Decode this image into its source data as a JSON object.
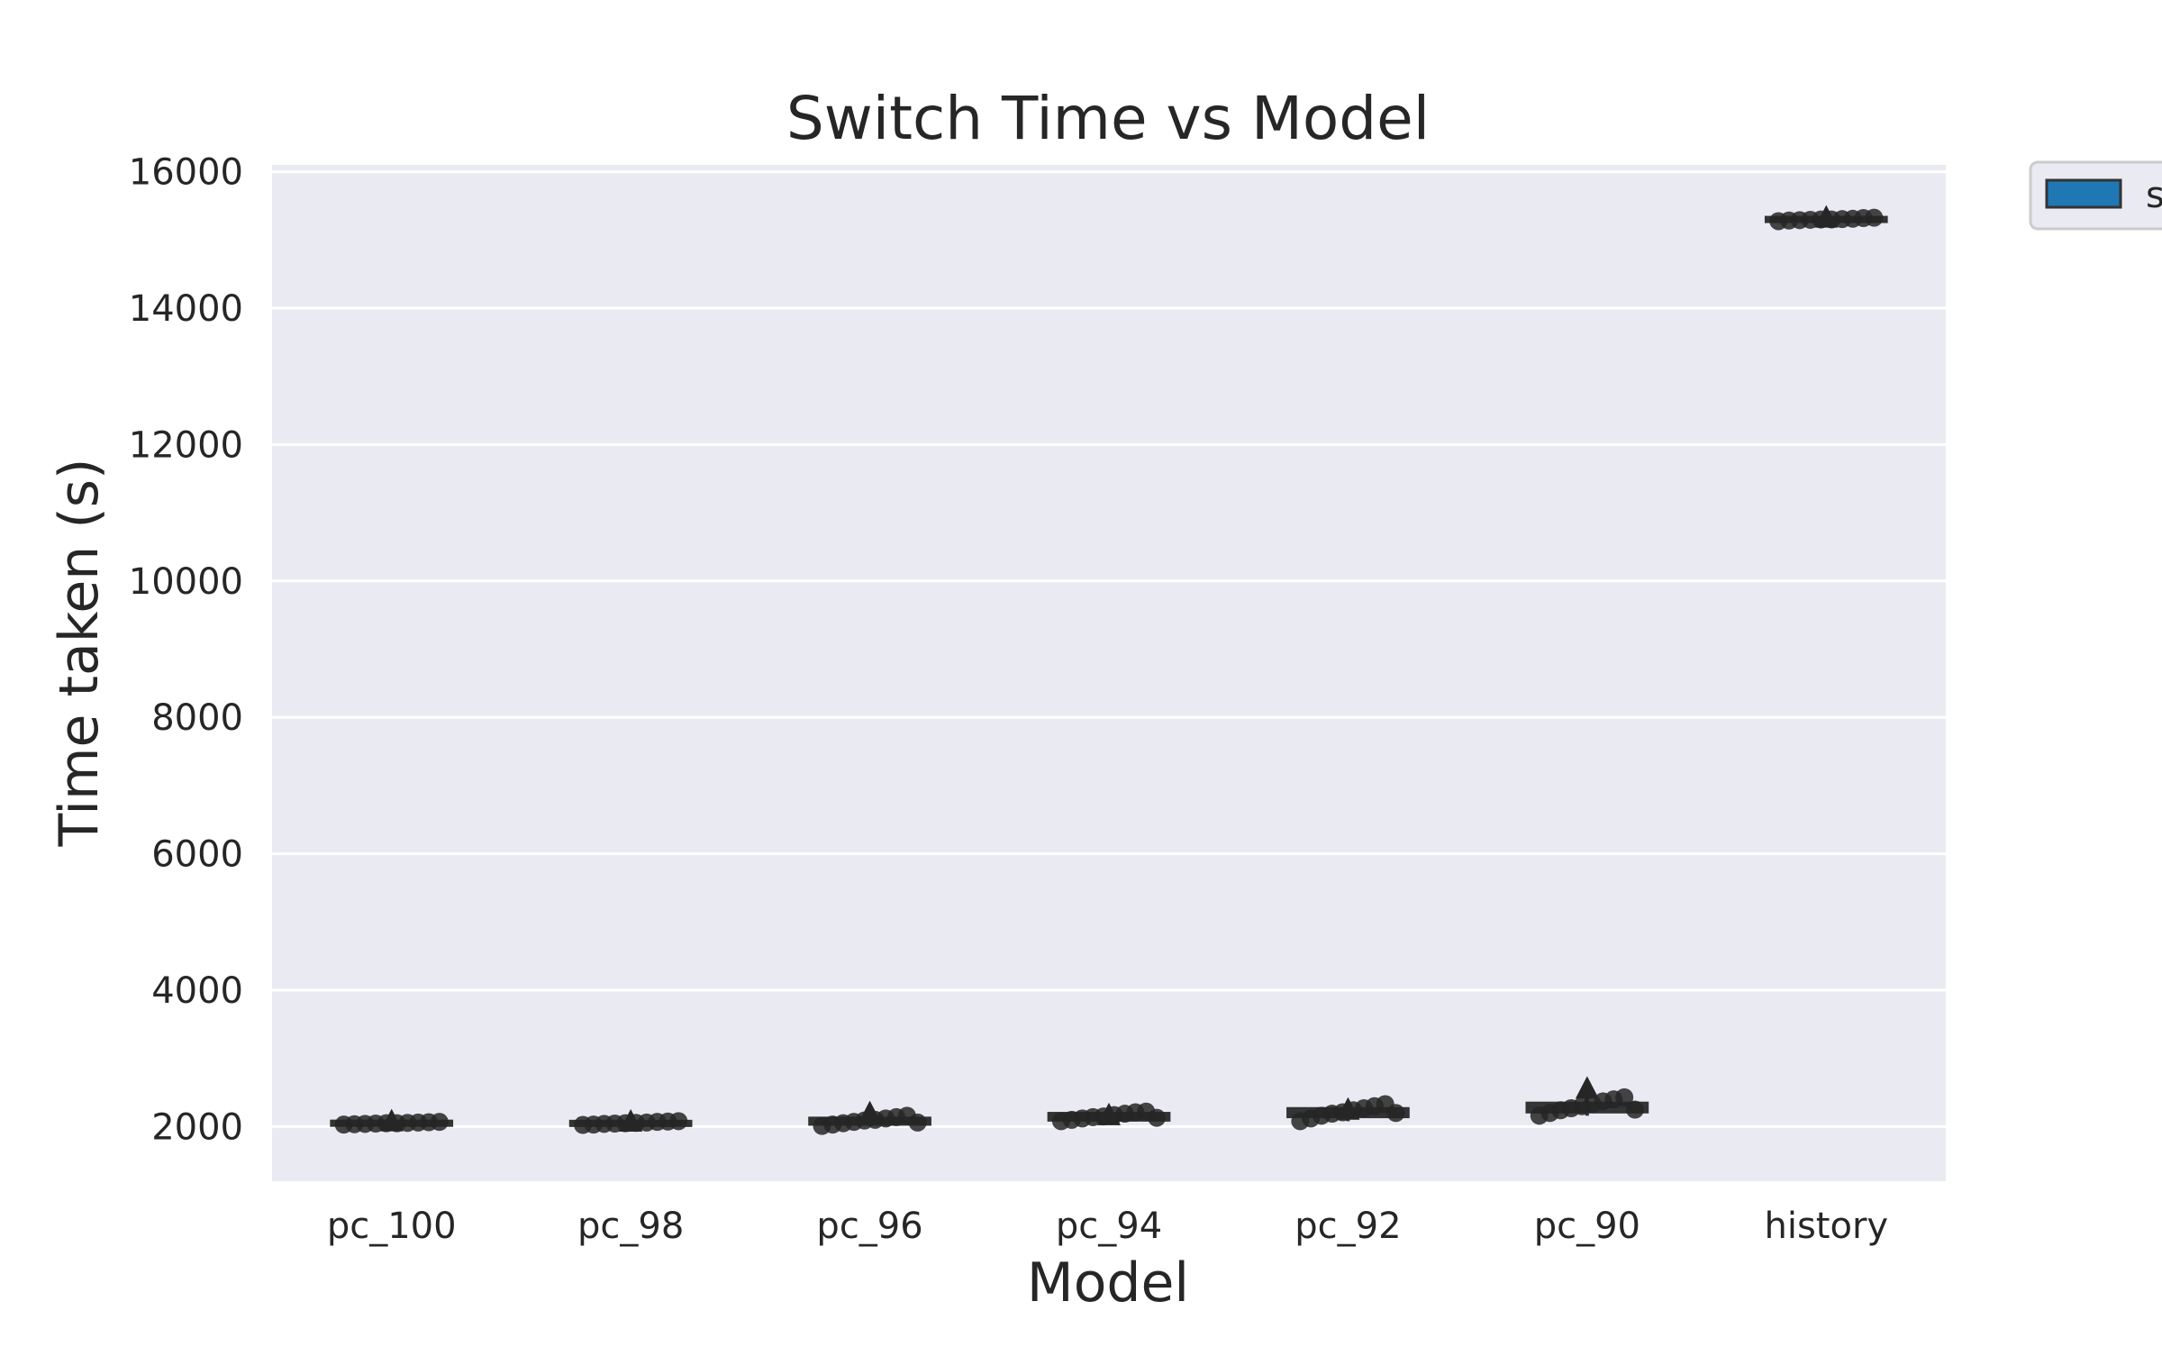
{
  "chart_data": {
    "type": "box",
    "title": "Switch Time vs Model",
    "xlabel": "Model",
    "ylabel": "Time taken (s)",
    "categories": [
      "pc_100",
      "pc_98",
      "pc_96",
      "pc_94",
      "pc_92",
      "pc_90",
      "history"
    ],
    "ylim": [
      1200,
      16100
    ],
    "yticks": [
      2000,
      4000,
      6000,
      8000,
      10000,
      12000,
      14000,
      16000
    ],
    "grid": true,
    "legend": {
      "placement": "top-right, outside plot",
      "entries": [
        {
          "label": "s",
          "color": "#1f77b4"
        }
      ]
    },
    "series": [
      {
        "name": "s",
        "color": "#1f77b4",
        "boxes": [
          {
            "category": "pc_100",
            "q1": 2035,
            "median": 2050,
            "q3": 2065,
            "whisker_low": 2025,
            "whisker_high": 2075,
            "mean": 2050,
            "points": [
              2030,
              2035,
              2040,
              2045,
              2050,
              2050,
              2055,
              2060,
              2065,
              2070
            ]
          },
          {
            "category": "pc_98",
            "q1": 2030,
            "median": 2045,
            "q3": 2065,
            "whisker_low": 2020,
            "whisker_high": 2080,
            "mean": 2045,
            "points": [
              2025,
              2030,
              2040,
              2045,
              2050,
              2055,
              2060,
              2070,
              2075,
              2080
            ]
          },
          {
            "category": "pc_96",
            "q1": 2040,
            "median": 2080,
            "q3": 2120,
            "whisker_low": 2010,
            "whisker_high": 2160,
            "mean": 2170,
            "points": [
              2010,
              2030,
              2050,
              2070,
              2090,
              2100,
              2120,
              2140,
              2160,
              2060
            ]
          },
          {
            "category": "pc_94",
            "q1": 2100,
            "median": 2140,
            "q3": 2190,
            "whisker_low": 2080,
            "whisker_high": 2220,
            "mean": 2140,
            "points": [
              2080,
              2100,
              2120,
              2140,
              2150,
              2170,
              2190,
              2210,
              2220,
              2130
            ]
          },
          {
            "category": "pc_92",
            "q1": 2150,
            "median": 2200,
            "q3": 2260,
            "whisker_low": 2080,
            "whisker_high": 2330,
            "mean": 2220,
            "points": [
              2080,
              2120,
              2160,
              2190,
              2210,
              2240,
              2270,
              2300,
              2330,
              2200
            ]
          },
          {
            "category": "pc_90",
            "q1": 2220,
            "median": 2280,
            "q3": 2340,
            "whisker_low": 2160,
            "whisker_high": 2420,
            "mean": 2530,
            "points": [
              2160,
              2200,
              2240,
              2270,
              2300,
              2330,
              2370,
              2400,
              2430,
              2250
            ]
          },
          {
            "category": "history",
            "q1": 15280,
            "median": 15300,
            "q3": 15320,
            "whisker_low": 15270,
            "whisker_high": 15330,
            "mean": 15300,
            "points": [
              15275,
              15285,
              15290,
              15295,
              15300,
              15300,
              15305,
              15310,
              15320,
              15325
            ]
          }
        ]
      }
    ]
  }
}
